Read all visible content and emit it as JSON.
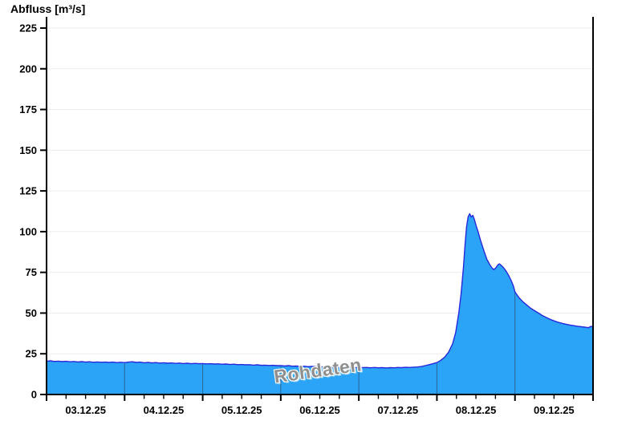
{
  "page": {
    "title": "Abfluss [m³/s]"
  },
  "watermark": {
    "text": "Rohdaten"
  },
  "chart_data": {
    "type": "area",
    "title": "Abfluss [m³/s]",
    "ylabel": "Abfluss [m³/s]",
    "xlabel": "",
    "legend": "none",
    "grid": "horizontal-only",
    "x_days": 7,
    "x_minor_tick_hours": 6,
    "x_tick_labels": [
      "03.12.25",
      "04.12.25",
      "05.12.25",
      "06.12.25",
      "07.12.25",
      "08.12.25",
      "09.12.25"
    ],
    "y_ticks": [
      0,
      25,
      50,
      75,
      100,
      125,
      150,
      175,
      200,
      225
    ],
    "y_tick_labels": [
      "0",
      "25",
      "50",
      "75",
      "100",
      "125",
      "150",
      "175",
      "200",
      "225"
    ],
    "ylim": [
      0,
      232
    ],
    "colors": {
      "background": "#ffffff",
      "fill": "#2ba4f8",
      "line": "#2727dd",
      "grid": "#ebebeb",
      "axis": "#000000",
      "day_line": "#2a6596",
      "watermark": "#8f8f8f"
    },
    "series": [
      {
        "name": "Abfluss",
        "unit": "m³/s",
        "points": [
          [
            0.0,
            20.4
          ],
          [
            0.05,
            20.7
          ],
          [
            0.1,
            20.3
          ],
          [
            0.15,
            20.5
          ],
          [
            0.2,
            20.2
          ],
          [
            0.25,
            20.4
          ],
          [
            0.3,
            20.1
          ],
          [
            0.35,
            20.3
          ],
          [
            0.4,
            20.0
          ],
          [
            0.45,
            20.2
          ],
          [
            0.5,
            19.9
          ],
          [
            0.55,
            20.1
          ],
          [
            0.6,
            19.8
          ],
          [
            0.65,
            20.0
          ],
          [
            0.7,
            19.8
          ],
          [
            0.75,
            19.9
          ],
          [
            0.8,
            19.7
          ],
          [
            0.85,
            19.9
          ],
          [
            0.9,
            19.6
          ],
          [
            0.95,
            19.8
          ],
          [
            1.0,
            19.6
          ],
          [
            1.05,
            19.9
          ],
          [
            1.1,
            20.1
          ],
          [
            1.15,
            19.7
          ],
          [
            1.2,
            19.9
          ],
          [
            1.25,
            19.5
          ],
          [
            1.3,
            19.7
          ],
          [
            1.35,
            19.4
          ],
          [
            1.4,
            19.6
          ],
          [
            1.45,
            19.3
          ],
          [
            1.5,
            19.5
          ],
          [
            1.55,
            19.2
          ],
          [
            1.6,
            19.4
          ],
          [
            1.65,
            19.1
          ],
          [
            1.7,
            19.3
          ],
          [
            1.75,
            19.0
          ],
          [
            1.8,
            19.2
          ],
          [
            1.85,
            18.9
          ],
          [
            1.9,
            19.1
          ],
          [
            1.95,
            18.9
          ],
          [
            2.0,
            19.0
          ],
          [
            2.05,
            18.8
          ],
          [
            2.1,
            18.9
          ],
          [
            2.15,
            18.7
          ],
          [
            2.2,
            18.8
          ],
          [
            2.25,
            18.6
          ],
          [
            2.3,
            18.7
          ],
          [
            2.35,
            18.4
          ],
          [
            2.4,
            18.6
          ],
          [
            2.45,
            18.3
          ],
          [
            2.5,
            18.4
          ],
          [
            2.55,
            18.2
          ],
          [
            2.6,
            18.3
          ],
          [
            2.65,
            18.0
          ],
          [
            2.7,
            18.2
          ],
          [
            2.75,
            17.9
          ],
          [
            2.8,
            18.0
          ],
          [
            2.85,
            17.8
          ],
          [
            2.9,
            17.9
          ],
          [
            2.95,
            17.7
          ],
          [
            3.0,
            17.7
          ],
          [
            3.05,
            17.5
          ],
          [
            3.1,
            17.7
          ],
          [
            3.15,
            17.4
          ],
          [
            3.2,
            17.5
          ],
          [
            3.25,
            17.3
          ],
          [
            3.3,
            17.4
          ],
          [
            3.35,
            17.1
          ],
          [
            3.4,
            17.3
          ],
          [
            3.45,
            17.0
          ],
          [
            3.5,
            17.1
          ],
          [
            3.55,
            16.9
          ],
          [
            3.6,
            17.0
          ],
          [
            3.65,
            16.8
          ],
          [
            3.7,
            16.9
          ],
          [
            3.75,
            16.7
          ],
          [
            3.8,
            16.8
          ],
          [
            3.85,
            16.6
          ],
          [
            3.9,
            16.8
          ],
          [
            3.95,
            16.5
          ],
          [
            4.0,
            16.7
          ],
          [
            4.05,
            16.5
          ],
          [
            4.1,
            16.6
          ],
          [
            4.15,
            16.4
          ],
          [
            4.2,
            16.6
          ],
          [
            4.25,
            16.4
          ],
          [
            4.3,
            16.5
          ],
          [
            4.35,
            16.3
          ],
          [
            4.4,
            16.5
          ],
          [
            4.45,
            16.4
          ],
          [
            4.5,
            16.6
          ],
          [
            4.55,
            16.5
          ],
          [
            4.6,
            16.7
          ],
          [
            4.65,
            16.6
          ],
          [
            4.7,
            16.8
          ],
          [
            4.75,
            16.9
          ],
          [
            4.8,
            17.2
          ],
          [
            4.85,
            17.7
          ],
          [
            4.9,
            18.3
          ],
          [
            4.95,
            18.9
          ],
          [
            5.0,
            19.6
          ],
          [
            5.05,
            21.0
          ],
          [
            5.1,
            23.0
          ],
          [
            5.15,
            26.0
          ],
          [
            5.2,
            31.0
          ],
          [
            5.24,
            38.0
          ],
          [
            5.28,
            50.0
          ],
          [
            5.31,
            62.0
          ],
          [
            5.34,
            78.0
          ],
          [
            5.36,
            92.0
          ],
          [
            5.38,
            103.0
          ],
          [
            5.4,
            109.0
          ],
          [
            5.42,
            111.0
          ],
          [
            5.44,
            109.0
          ],
          [
            5.46,
            110.0
          ],
          [
            5.48,
            107.5
          ],
          [
            5.5,
            104.0
          ],
          [
            5.53,
            99.5
          ],
          [
            5.56,
            94.5
          ],
          [
            5.6,
            88.5
          ],
          [
            5.64,
            83.0
          ],
          [
            5.68,
            79.5
          ],
          [
            5.71,
            77.5
          ],
          [
            5.73,
            76.7
          ],
          [
            5.75,
            77.5
          ],
          [
            5.78,
            79.5
          ],
          [
            5.8,
            80.2
          ],
          [
            5.83,
            79.0
          ],
          [
            5.86,
            77.5
          ],
          [
            5.89,
            75.5
          ],
          [
            5.92,
            73.0
          ],
          [
            5.95,
            70.0
          ],
          [
            5.98,
            66.5
          ],
          [
            6.0,
            63.0
          ],
          [
            6.05,
            59.5
          ],
          [
            6.1,
            57.0
          ],
          [
            6.15,
            55.0
          ],
          [
            6.2,
            53.0
          ],
          [
            6.25,
            51.5
          ],
          [
            6.3,
            50.0
          ],
          [
            6.35,
            48.5
          ],
          [
            6.4,
            47.3
          ],
          [
            6.45,
            46.2
          ],
          [
            6.5,
            45.2
          ],
          [
            6.55,
            44.4
          ],
          [
            6.6,
            43.7
          ],
          [
            6.65,
            43.2
          ],
          [
            6.7,
            42.7
          ],
          [
            6.75,
            42.3
          ],
          [
            6.8,
            41.9
          ],
          [
            6.85,
            41.6
          ],
          [
            6.9,
            41.3
          ],
          [
            6.94,
            41.0
          ],
          [
            6.97,
            41.8
          ],
          [
            7.0,
            41.6
          ]
        ]
      }
    ]
  }
}
